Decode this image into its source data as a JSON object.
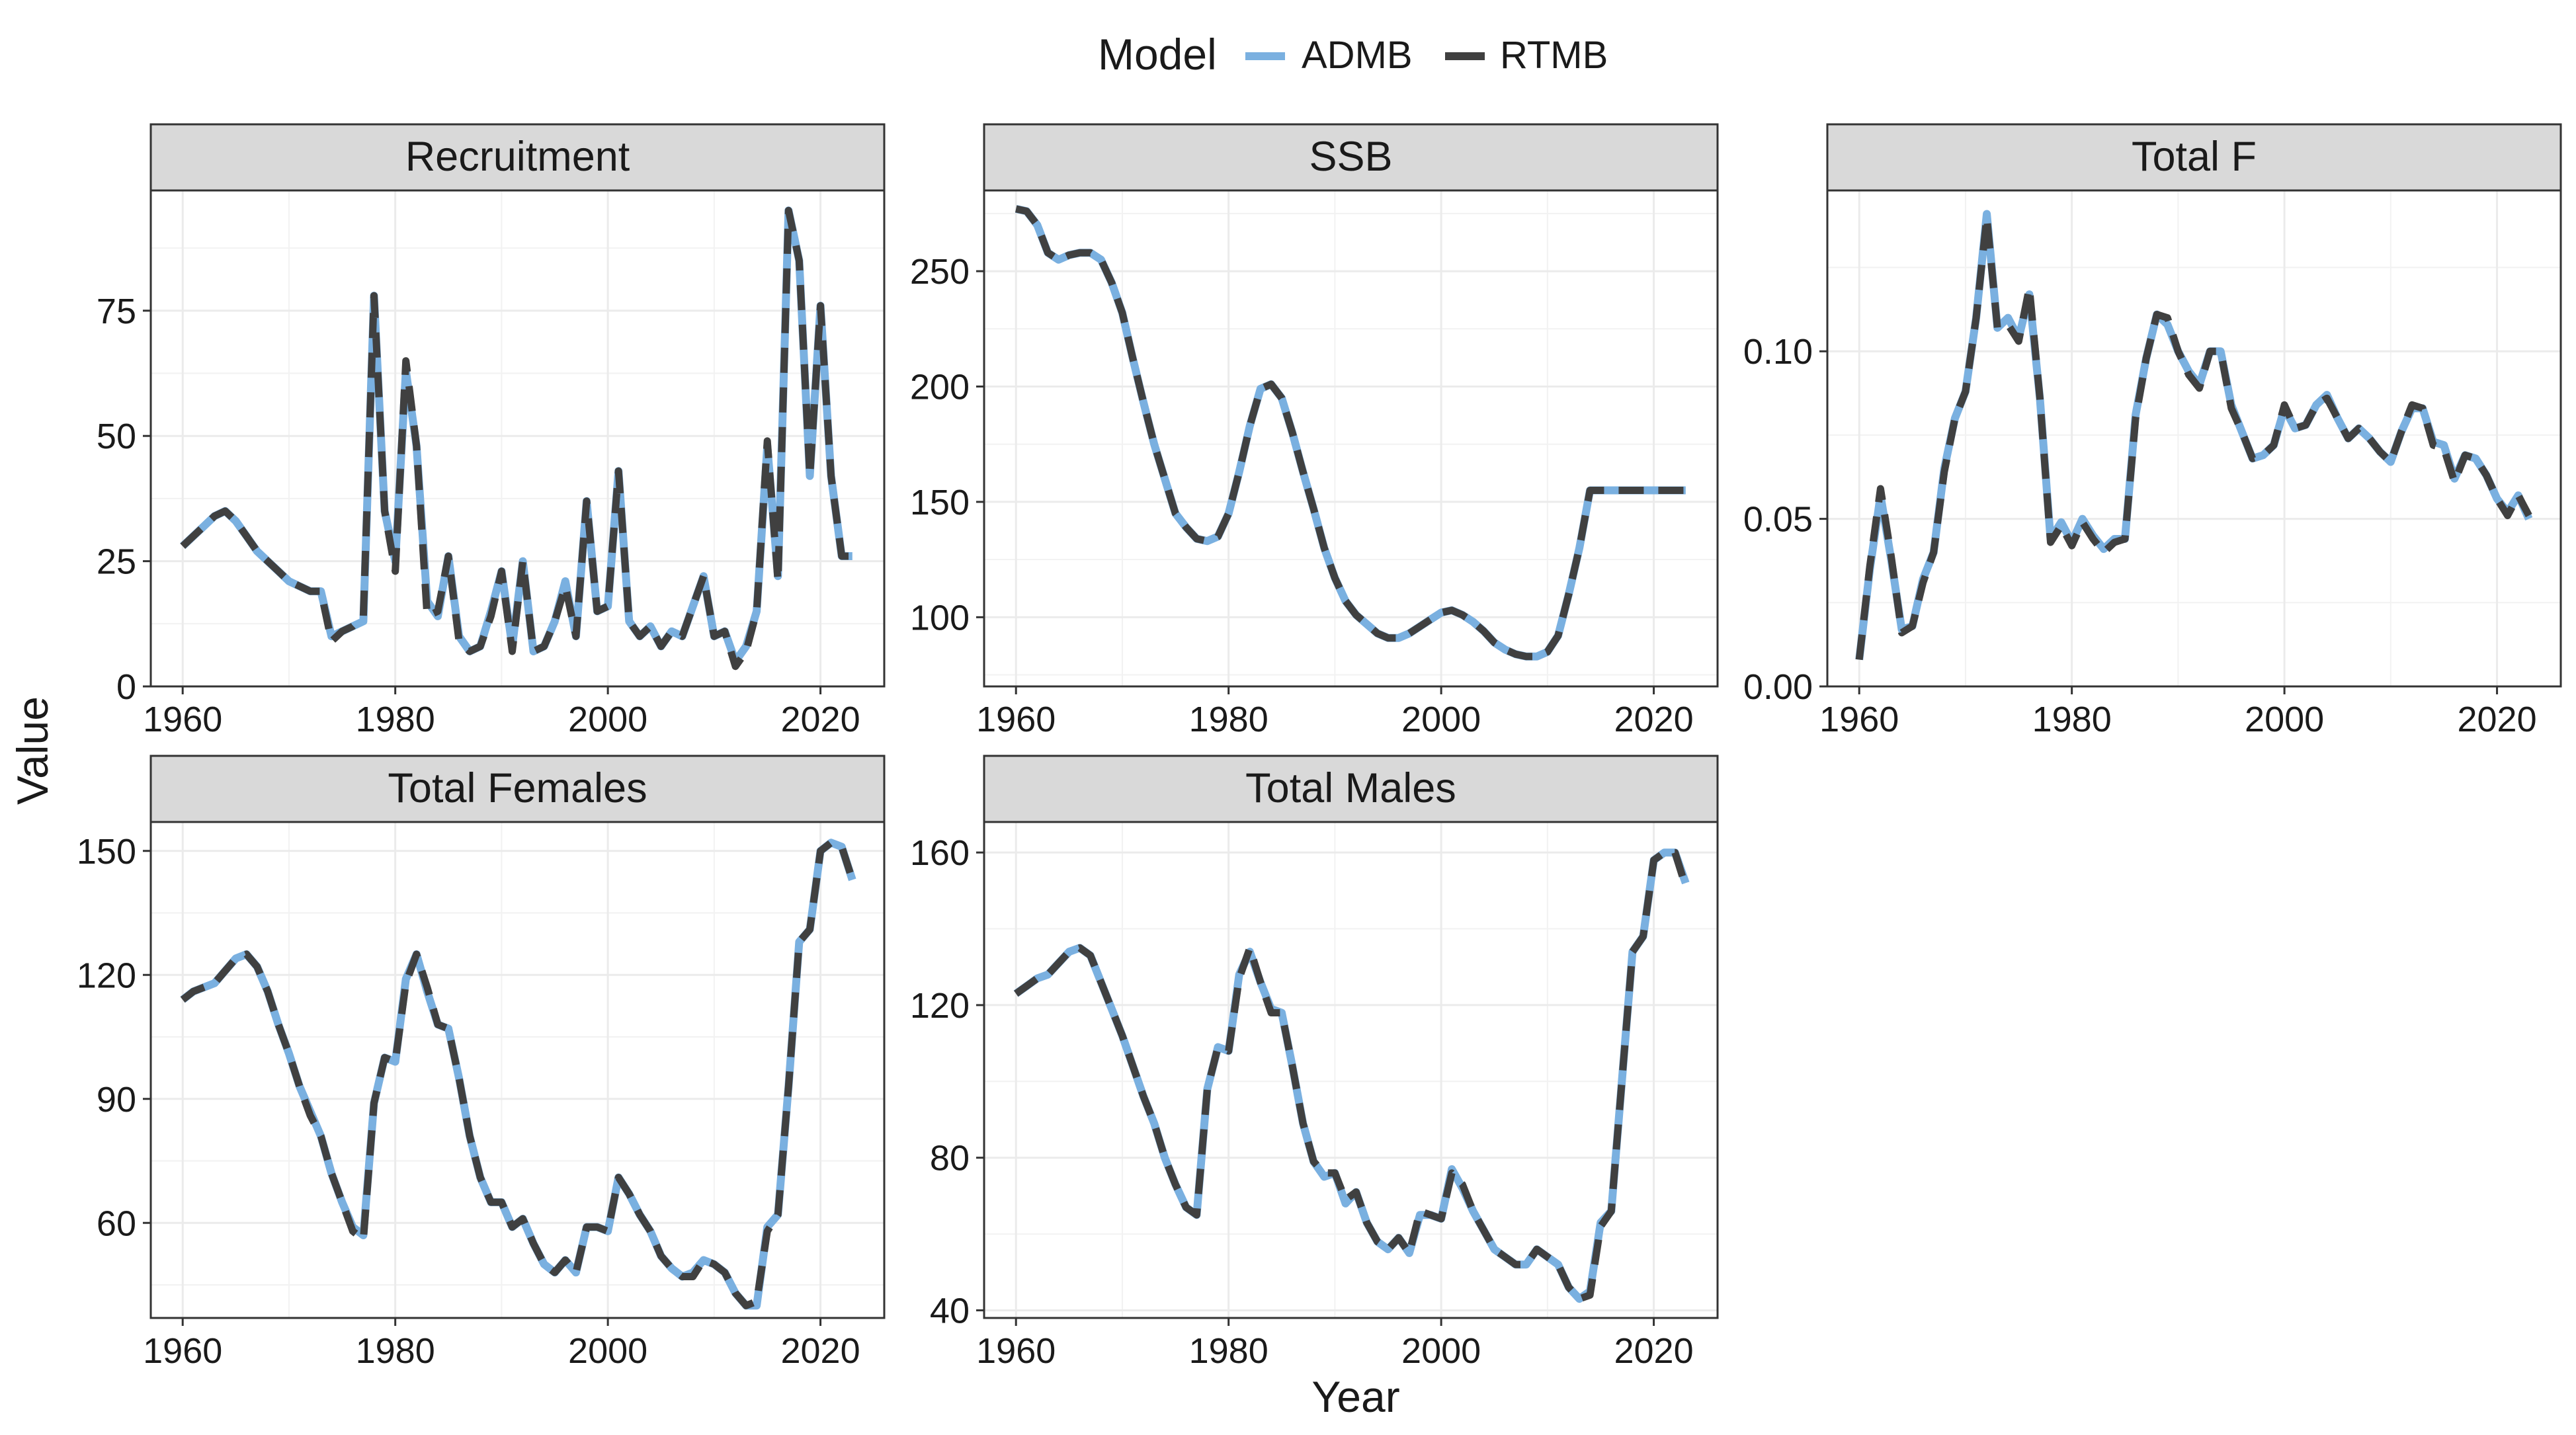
{
  "figure": {
    "xlabel": "Year",
    "ylabel": "Value",
    "legend": {
      "title": "Model",
      "position": "top",
      "items": [
        {
          "name": "ADMB",
          "color": "#7ab0e0",
          "style": "solid"
        },
        {
          "name": "RTMB",
          "color": "#404040",
          "style": "dashed"
        }
      ]
    },
    "strip_background": "#d9d9d9",
    "grid": true
  },
  "chart_data": [
    {
      "type": "line",
      "title": "Recruitment",
      "x_ticks": [
        1960,
        1980,
        2000,
        2020
      ],
      "y_ticks": [
        0,
        25,
        50,
        75
      ],
      "y_tick_labels": [
        "0",
        "25",
        "50",
        "75"
      ],
      "xlim": [
        1957,
        2026
      ],
      "ylim": [
        0,
        99
      ],
      "x": [
        1960,
        1961,
        1962,
        1963,
        1964,
        1965,
        1966,
        1967,
        1968,
        1969,
        1970,
        1971,
        1972,
        1973,
        1974,
        1975,
        1976,
        1977,
        1978,
        1979,
        1980,
        1981,
        1982,
        1983,
        1984,
        1985,
        1986,
        1987,
        1988,
        1989,
        1990,
        1991,
        1992,
        1993,
        1994,
        1995,
        1996,
        1997,
        1998,
        1999,
        2000,
        2001,
        2002,
        2003,
        2004,
        2005,
        2006,
        2007,
        2008,
        2009,
        2010,
        2011,
        2012,
        2013,
        2014,
        2015,
        2016,
        2017,
        2018,
        2019,
        2020,
        2021,
        2022,
        2023
      ],
      "series": [
        {
          "name": "ADMB",
          "values": [
            28,
            30,
            32,
            34,
            35,
            33,
            30,
            27,
            25,
            23,
            21,
            20,
            19,
            19,
            10,
            11,
            12,
            13,
            78,
            35,
            25,
            63,
            48,
            17,
            14,
            26,
            10,
            7,
            8,
            15,
            23,
            8,
            25,
            7,
            8,
            13,
            21,
            10,
            37,
            15,
            16,
            43,
            13,
            10,
            12,
            8,
            11,
            10,
            16,
            22,
            10,
            11,
            5,
            8,
            15,
            48,
            22,
            95,
            85,
            42,
            76,
            42,
            26,
            26
          ]
        },
        {
          "name": "RTMB",
          "values": [
            28,
            30,
            32,
            34,
            35,
            33,
            30,
            27,
            25,
            23,
            21,
            20,
            19,
            19,
            9,
            11,
            12,
            14,
            78,
            35,
            23,
            65,
            48,
            14,
            15,
            26,
            9,
            7,
            8,
            14,
            23,
            7,
            25,
            7,
            8,
            13,
            20,
            10,
            37,
            15,
            16,
            43,
            13,
            10,
            12,
            8,
            11,
            10,
            16,
            22,
            10,
            11,
            4,
            7,
            15,
            49,
            21,
            95,
            85,
            42,
            76,
            42,
            26,
            26
          ]
        }
      ]
    },
    {
      "type": "line",
      "title": "SSB",
      "x_ticks": [
        1960,
        1980,
        2000,
        2020
      ],
      "y_ticks": [
        100,
        150,
        200,
        250
      ],
      "y_tick_labels": [
        "100",
        "150",
        "200",
        "250"
      ],
      "xlim": [
        1957,
        2026
      ],
      "ylim": [
        70,
        285
      ],
      "x": [
        1960,
        1961,
        1962,
        1963,
        1964,
        1965,
        1966,
        1967,
        1968,
        1969,
        1970,
        1971,
        1972,
        1973,
        1974,
        1975,
        1976,
        1977,
        1978,
        1979,
        1980,
        1981,
        1982,
        1983,
        1984,
        1985,
        1986,
        1987,
        1988,
        1989,
        1990,
        1991,
        1992,
        1993,
        1994,
        1995,
        1996,
        1997,
        1998,
        1999,
        2000,
        2001,
        2002,
        2003,
        2004,
        2005,
        2006,
        2007,
        2008,
        2009,
        2010,
        2011,
        2012,
        2013,
        2014,
        2015,
        2016,
        2017,
        2018,
        2019,
        2020,
        2021,
        2022,
        2023
      ],
      "series": [
        {
          "name": "ADMB",
          "values": [
            277,
            276,
            270,
            258,
            255,
            257,
            258,
            258,
            255,
            245,
            232,
            212,
            193,
            175,
            160,
            145,
            139,
            134,
            133,
            135,
            145,
            163,
            183,
            199,
            201,
            195,
            180,
            163,
            147,
            130,
            117,
            107,
            101,
            97,
            93,
            91,
            91,
            93,
            96,
            99,
            102,
            103,
            101,
            98,
            94,
            89,
            86,
            84,
            83,
            83,
            85,
            92,
            110,
            130,
            155,
            155,
            155,
            155,
            155,
            155,
            155,
            155,
            155,
            155
          ]
        },
        {
          "name": "RTMB",
          "values": [
            277,
            276,
            270,
            258,
            255,
            257,
            258,
            258,
            255,
            245,
            232,
            212,
            193,
            175,
            160,
            145,
            139,
            134,
            133,
            135,
            145,
            163,
            183,
            199,
            201,
            195,
            180,
            163,
            147,
            130,
            117,
            107,
            101,
            97,
            93,
            91,
            91,
            93,
            96,
            99,
            102,
            103,
            101,
            98,
            94,
            89,
            86,
            84,
            83,
            83,
            85,
            92,
            110,
            130,
            155,
            155,
            155,
            155,
            155,
            155,
            155,
            155,
            155,
            155
          ]
        }
      ]
    },
    {
      "type": "line",
      "title": "Total F",
      "x_ticks": [
        1960,
        1980,
        2000,
        2020
      ],
      "y_ticks": [
        0.0,
        0.05,
        0.1
      ],
      "y_tick_labels": [
        "0.00",
        "0.05",
        "0.10"
      ],
      "xlim": [
        1957,
        2026
      ],
      "ylim": [
        0,
        0.148
      ],
      "x": [
        1960,
        1961,
        1962,
        1963,
        1964,
        1965,
        1966,
        1967,
        1968,
        1969,
        1970,
        1971,
        1972,
        1973,
        1974,
        1975,
        1976,
        1977,
        1978,
        1979,
        1980,
        1981,
        1982,
        1983,
        1984,
        1985,
        1986,
        1987,
        1988,
        1989,
        1990,
        1991,
        1992,
        1993,
        1994,
        1995,
        1996,
        1997,
        1998,
        1999,
        2000,
        2001,
        2002,
        2003,
        2004,
        2005,
        2006,
        2007,
        2008,
        2009,
        2010,
        2011,
        2012,
        2013,
        2014,
        2015,
        2016,
        2017,
        2018,
        2019,
        2020,
        2021,
        2022,
        2023
      ],
      "series": [
        {
          "name": "ADMB",
          "values": [
            0.008,
            0.035,
            0.057,
            0.038,
            0.017,
            0.018,
            0.032,
            0.04,
            0.065,
            0.08,
            0.088,
            0.11,
            0.141,
            0.107,
            0.11,
            0.104,
            0.117,
            0.086,
            0.044,
            0.049,
            0.043,
            0.05,
            0.045,
            0.041,
            0.044,
            0.044,
            0.081,
            0.098,
            0.111,
            0.108,
            0.1,
            0.094,
            0.09,
            0.1,
            0.1,
            0.084,
            0.076,
            0.068,
            0.069,
            0.072,
            0.083,
            0.077,
            0.078,
            0.084,
            0.087,
            0.08,
            0.074,
            0.077,
            0.074,
            0.07,
            0.067,
            0.076,
            0.083,
            0.083,
            0.073,
            0.072,
            0.062,
            0.069,
            0.068,
            0.063,
            0.056,
            0.052,
            0.057,
            0.05
          ]
        },
        {
          "name": "RTMB",
          "values": [
            0.008,
            0.036,
            0.059,
            0.039,
            0.016,
            0.018,
            0.031,
            0.04,
            0.064,
            0.08,
            0.088,
            0.11,
            0.14,
            0.107,
            0.108,
            0.103,
            0.119,
            0.086,
            0.043,
            0.048,
            0.042,
            0.049,
            0.044,
            0.04,
            0.043,
            0.044,
            0.08,
            0.098,
            0.111,
            0.11,
            0.1,
            0.093,
            0.089,
            0.1,
            0.1,
            0.083,
            0.076,
            0.068,
            0.069,
            0.072,
            0.084,
            0.077,
            0.078,
            0.084,
            0.086,
            0.08,
            0.074,
            0.077,
            0.074,
            0.07,
            0.067,
            0.076,
            0.084,
            0.083,
            0.072,
            0.071,
            0.061,
            0.069,
            0.068,
            0.063,
            0.056,
            0.051,
            0.057,
            0.051
          ]
        }
      ]
    },
    {
      "type": "line",
      "title": "Total Females",
      "x_ticks": [
        1960,
        1980,
        2000,
        2020
      ],
      "y_ticks": [
        60,
        90,
        120,
        150
      ],
      "y_tick_labels": [
        "60",
        "90",
        "120",
        "150"
      ],
      "xlim": [
        1957,
        2026
      ],
      "ylim": [
        37,
        157
      ],
      "x": [
        1960,
        1961,
        1962,
        1963,
        1964,
        1965,
        1966,
        1967,
        1968,
        1969,
        1970,
        1971,
        1972,
        1973,
        1974,
        1975,
        1976,
        1977,
        1978,
        1979,
        1980,
        1981,
        1982,
        1983,
        1984,
        1985,
        1986,
        1987,
        1988,
        1989,
        1990,
        1991,
        1992,
        1993,
        1994,
        1995,
        1996,
        1997,
        1998,
        1999,
        2000,
        2001,
        2002,
        2003,
        2004,
        2005,
        2006,
        2007,
        2008,
        2009,
        2010,
        2011,
        2012,
        2013,
        2014,
        2015,
        2016,
        2017,
        2018,
        2019,
        2020,
        2021,
        2022,
        2023
      ],
      "series": [
        {
          "name": "ADMB",
          "values": [
            114,
            116,
            117,
            118,
            121,
            124,
            125,
            122,
            116,
            108,
            101,
            93,
            87,
            81,
            72,
            65,
            59,
            57,
            89,
            100,
            99,
            119,
            125,
            116,
            108,
            107,
            95,
            81,
            71,
            65,
            65,
            59,
            61,
            55,
            50,
            48,
            51,
            48,
            59,
            59,
            58,
            71,
            67,
            62,
            58,
            52,
            49,
            47,
            48,
            51,
            50,
            48,
            43,
            40,
            40,
            59,
            62,
            93,
            128,
            131,
            150,
            152,
            151,
            143
          ]
        },
        {
          "name": "RTMB",
          "values": [
            114,
            116,
            117,
            118,
            121,
            124,
            125,
            122,
            116,
            108,
            101,
            93,
            86,
            81,
            72,
            65,
            58,
            56,
            89,
            100,
            99,
            118,
            125,
            117,
            108,
            107,
            95,
            81,
            71,
            65,
            65,
            59,
            61,
            55,
            50,
            48,
            51,
            48,
            59,
            59,
            58,
            71,
            67,
            62,
            58,
            52,
            49,
            47,
            47,
            51,
            50,
            48,
            43,
            40,
            41,
            58,
            62,
            93,
            128,
            131,
            150,
            152,
            151,
            143
          ]
        }
      ]
    },
    {
      "type": "line",
      "title": "Total Males",
      "x_ticks": [
        1960,
        1980,
        2000,
        2020
      ],
      "y_ticks": [
        40,
        80,
        120,
        160
      ],
      "y_tick_labels": [
        "40",
        "80",
        "120",
        "160"
      ],
      "xlim": [
        1957,
        2026
      ],
      "ylim": [
        38,
        168
      ],
      "x": [
        1960,
        1961,
        1962,
        1963,
        1964,
        1965,
        1966,
        1967,
        1968,
        1969,
        1970,
        1971,
        1972,
        1973,
        1974,
        1975,
        1976,
        1977,
        1978,
        1979,
        1980,
        1981,
        1982,
        1983,
        1984,
        1985,
        1986,
        1987,
        1988,
        1989,
        1990,
        1991,
        1992,
        1993,
        1994,
        1995,
        1996,
        1997,
        1998,
        1999,
        2000,
        2001,
        2002,
        2003,
        2004,
        2005,
        2006,
        2007,
        2008,
        2009,
        2010,
        2011,
        2012,
        2013,
        2014,
        2015,
        2016,
        2017,
        2018,
        2019,
        2020,
        2021,
        2022,
        2023
      ],
      "series": [
        {
          "name": "ADMB",
          "values": [
            123,
            125,
            127,
            128,
            131,
            134,
            135,
            133,
            126,
            119,
            112,
            104,
            96,
            89,
            80,
            73,
            67,
            65,
            98,
            109,
            108,
            128,
            134,
            126,
            119,
            118,
            104,
            89,
            79,
            75,
            76,
            68,
            71,
            63,
            58,
            56,
            59,
            55,
            65,
            65,
            64,
            77,
            72,
            66,
            61,
            56,
            54,
            52,
            52,
            56,
            54,
            52,
            46,
            43,
            45,
            63,
            66,
            100,
            134,
            138,
            158,
            160,
            160,
            152
          ]
        },
        {
          "name": "RTMB",
          "values": [
            123,
            125,
            127,
            128,
            131,
            134,
            135,
            133,
            126,
            119,
            112,
            104,
            96,
            89,
            80,
            73,
            67,
            65,
            98,
            109,
            108,
            127,
            135,
            126,
            118,
            118,
            104,
            89,
            79,
            76,
            76,
            69,
            71,
            63,
            58,
            56,
            59,
            55,
            66,
            65,
            64,
            76,
            73,
            66,
            61,
            56,
            54,
            52,
            52,
            56,
            54,
            52,
            46,
            43,
            44,
            62,
            66,
            100,
            134,
            138,
            158,
            160,
            160,
            151
          ]
        }
      ]
    }
  ]
}
